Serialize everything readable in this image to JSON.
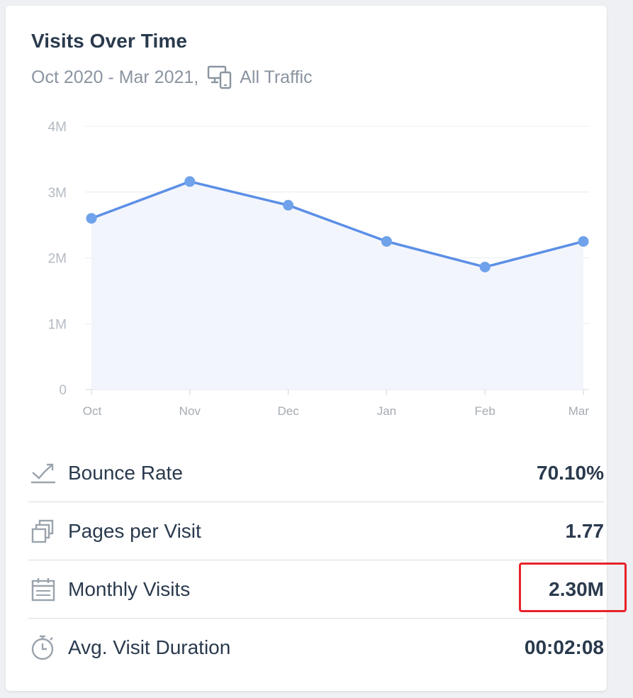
{
  "header": {
    "title": "Visits Over Time",
    "date_range": "Oct 2020 - Mar 2021,",
    "traffic_filter": "All Traffic",
    "traffic_icon": "devices-icon"
  },
  "chart_data": {
    "type": "area",
    "categories": [
      "Oct",
      "Nov",
      "Dec",
      "Jan",
      "Feb",
      "Mar"
    ],
    "series": [
      {
        "values": [
          2.6,
          3.16,
          2.8,
          2.25,
          1.86,
          2.25
        ]
      }
    ],
    "y_ticks": [
      "0",
      "1M",
      "2M",
      "3M",
      "4M"
    ],
    "ylim": [
      0,
      4
    ],
    "grid": true,
    "colors": {
      "line": "#5b8fe6",
      "point": "#6fa2ea",
      "fill": "#f3f5fd",
      "grid": "#e9ecef"
    }
  },
  "metrics": [
    {
      "icon": "bounce-rate-icon",
      "label": "Bounce Rate",
      "value": "70.10%"
    },
    {
      "icon": "pages-icon",
      "label": "Pages per Visit",
      "value": "1.77"
    },
    {
      "icon": "calendar-icon",
      "label": "Monthly Visits",
      "value": "2.30M",
      "highlighted": true,
      "highlight_color": "#e8222a"
    },
    {
      "icon": "stopwatch-icon",
      "label": "Avg. Visit Duration",
      "value": "00:02:08"
    }
  ]
}
